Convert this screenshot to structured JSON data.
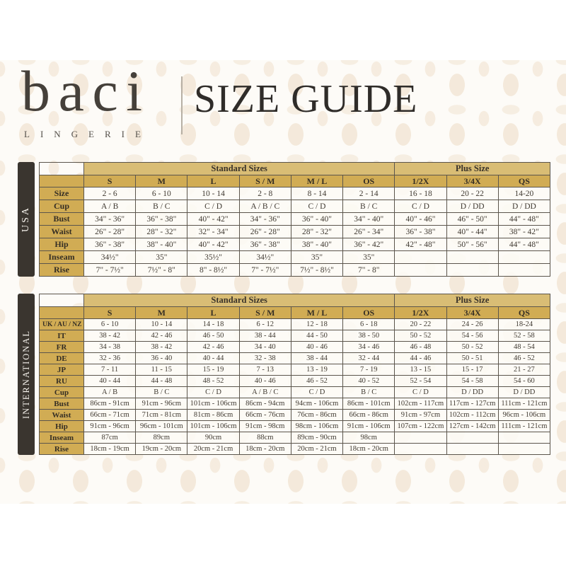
{
  "header": {
    "brand": "baci",
    "brand_sub": "LINGERIE",
    "title": "SIZE GUIDE"
  },
  "colors": {
    "gold_band": "#d9bd75",
    "gold_header": "#d1ac54",
    "sidebar_dark": "#3a352f",
    "cell_cream": "#fdfbf5",
    "border": "#5b554c",
    "title_text": "#2f2c29"
  },
  "tables": [
    {
      "region": "USA",
      "standard_label": "Standard Sizes",
      "plus_label": "Plus Size",
      "standard_span": 6,
      "plus_span": 3,
      "columns": [
        "S",
        "M",
        "L",
        "S / M",
        "M / L",
        "OS",
        "1/2X",
        "3/4X",
        "QS"
      ],
      "rows": [
        {
          "label": "Size",
          "values": [
            "2 - 6",
            "6 - 10",
            "10 - 14",
            "2 - 8",
            "8 - 14",
            "2 - 14",
            "16 - 18",
            "20 - 22",
            "14-20"
          ]
        },
        {
          "label": "Cup",
          "values": [
            "A / B",
            "B / C",
            "C / D",
            "A / B / C",
            "C / D",
            "B / C",
            "C / D",
            "D / DD",
            "D / DD"
          ]
        },
        {
          "label": "Bust",
          "values": [
            "34\" - 36\"",
            "36\" - 38\"",
            "40\" - 42\"",
            "34\" - 36\"",
            "36\" - 40\"",
            "34\" - 40\"",
            "40\" - 46\"",
            "46\" - 50\"",
            "44\" - 48\""
          ]
        },
        {
          "label": "Waist",
          "values": [
            "26\" - 28\"",
            "28\" - 32\"",
            "32\" - 34\"",
            "26\" - 28\"",
            "28\" - 32\"",
            "26\" - 34\"",
            "36\" - 38\"",
            "40\" - 44\"",
            "38\" - 42\""
          ]
        },
        {
          "label": "Hip",
          "values": [
            "36\" - 38\"",
            "38\" - 40\"",
            "40\" - 42\"",
            "36\" - 38\"",
            "38\" - 40\"",
            "36\" - 42\"",
            "42\" - 48\"",
            "50\" - 56\"",
            "44\" - 48\""
          ]
        },
        {
          "label": "Inseam",
          "values": [
            "34½\"",
            "35\"",
            "35½\"",
            "34½\"",
            "35\"",
            "35\"",
            "",
            "",
            ""
          ]
        },
        {
          "label": "Rise",
          "values": [
            "7\" - 7½\"",
            "7½\" - 8\"",
            "8\" - 8½\"",
            "7\" - 7½\"",
            "7½\" - 8½\"",
            "7\" - 8\"",
            "",
            "",
            ""
          ]
        }
      ]
    },
    {
      "region": "INTERNATIONAL",
      "standard_label": "Standard Sizes",
      "plus_label": "Plus Size",
      "standard_span": 6,
      "plus_span": 3,
      "columns": [
        "S",
        "M",
        "L",
        "S / M",
        "M / L",
        "OS",
        "1/2X",
        "3/4X",
        "QS"
      ],
      "rows": [
        {
          "label": "UK / AU / NZ",
          "values": [
            "6 - 10",
            "10 - 14",
            "14 - 18",
            "6 - 12",
            "12 - 18",
            "6 - 18",
            "20 - 22",
            "24 - 26",
            "18-24"
          ]
        },
        {
          "label": "IT",
          "values": [
            "38 - 42",
            "42 - 46",
            "46 - 50",
            "38 - 44",
            "44 - 50",
            "38 - 50",
            "50 - 52",
            "54 - 56",
            "52 - 58"
          ]
        },
        {
          "label": "FR",
          "values": [
            "34 - 38",
            "38 - 42",
            "42 - 46",
            "34 - 40",
            "40 - 46",
            "34 - 46",
            "46 - 48",
            "50 - 52",
            "48 - 54"
          ]
        },
        {
          "label": "DE",
          "values": [
            "32 - 36",
            "36 - 40",
            "40 - 44",
            "32 - 38",
            "38 - 44",
            "32 - 44",
            "44 - 46",
            "50 - 51",
            "46 - 52"
          ]
        },
        {
          "label": "JP",
          "values": [
            "7 - 11",
            "11 - 15",
            "15 - 19",
            "7 - 13",
            "13 - 19",
            "7 - 19",
            "13 - 15",
            "15 - 17",
            "21 - 27"
          ]
        },
        {
          "label": "RU",
          "values": [
            "40 - 44",
            "44 - 48",
            "48 - 52",
            "40 - 46",
            "46 - 52",
            "40 - 52",
            "52 - 54",
            "54 - 58",
            "54 - 60"
          ]
        },
        {
          "label": "Cup",
          "values": [
            "A / B",
            "B / C",
            "C / D",
            "A / B / C",
            "C / D",
            "B / C",
            "C / D",
            "D / DD",
            "D / DD"
          ]
        },
        {
          "label": "Bust",
          "values": [
            "86cm - 91cm",
            "91cm - 96cm",
            "101cm - 106cm",
            "86cm - 94cm",
            "94cm - 106cm",
            "86cm - 101cm",
            "102cm - 117cm",
            "117cm - 127cm",
            "111cm - 121cm"
          ]
        },
        {
          "label": "Waist",
          "values": [
            "66cm - 71cm",
            "71cm - 81cm",
            "81cm - 86cm",
            "66cm - 76cm",
            "76cm - 86cm",
            "66cm - 86cm",
            "91cm - 97cm",
            "102cm - 112cm",
            "96cm - 106cm"
          ]
        },
        {
          "label": "Hip",
          "values": [
            "91cm - 96cm",
            "96cm - 101cm",
            "101cm - 106cm",
            "91cm - 98cm",
            "98cm - 106cm",
            "91cm - 106cm",
            "107cm - 122cm",
            "127cm - 142cm",
            "111cm - 121cm"
          ]
        },
        {
          "label": "Inseam",
          "values": [
            "87cm",
            "89cm",
            "90cm",
            "88cm",
            "89cm - 90cm",
            "98cm",
            "",
            "",
            ""
          ]
        },
        {
          "label": "Rise",
          "values": [
            "18cm - 19cm",
            "19cm - 20cm",
            "20cm - 21cm",
            "18cm - 20cm",
            "20cm - 21cm",
            "18cm - 20cm",
            "",
            "",
            ""
          ]
        }
      ]
    }
  ]
}
